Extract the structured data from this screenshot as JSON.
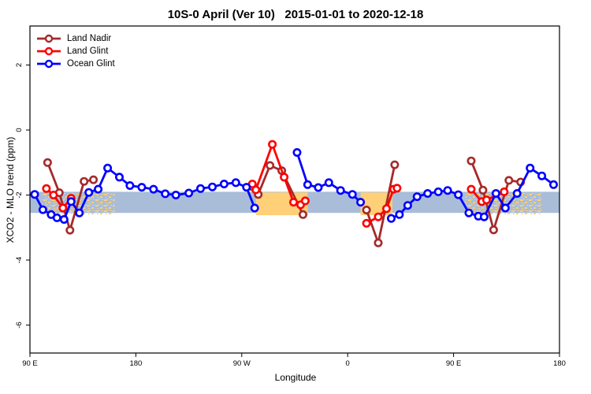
{
  "figure": {
    "title": "10S-0 April (Ver 10)   2015-01-01 to 2020-12-18"
  },
  "chart_data": {
    "type": "line",
    "title": "10S-0 April (Ver 10)   2015-01-01 to 2020-12-18",
    "xlabel": "Longitude",
    "ylabel": "XCO2 - MLO trend (ppm)",
    "grid": "off",
    "legend_position": "top-left",
    "x_axis": {
      "note": "wrapped longitude axis; x = degrees from left edge (left edge = 90 E, axis spans 450 deg eastward)",
      "range": [
        0,
        450
      ],
      "ticks": [
        {
          "pos": 0,
          "label": "90 E"
        },
        {
          "pos": 90,
          "label": "180"
        },
        {
          "pos": 180,
          "label": "90 W"
        },
        {
          "pos": 270,
          "label": "0"
        },
        {
          "pos": 360,
          "label": "90 E"
        },
        {
          "pos": 450,
          "label": "180"
        }
      ]
    },
    "y_axis": {
      "range": [
        -6.86,
        3.2
      ],
      "ticks": [
        {
          "pos": 2,
          "label": "2"
        },
        {
          "pos": 0,
          "label": "0"
        },
        {
          "pos": -2,
          "label": "-2"
        },
        {
          "pos": -4,
          "label": "-4"
        },
        {
          "pos": -6,
          "label": "-6"
        }
      ]
    },
    "reference_band": {
      "y_min": -2.55,
      "y_max": -1.9,
      "color": "#a9bdd9"
    },
    "land_bands": {
      "color": "#ffd077",
      "y_min": -2.62,
      "y_max": -1.92,
      "segments": [
        {
          "x_min": 10,
          "x_max": 72,
          "style": "speckled"
        },
        {
          "x_min": 192,
          "x_max": 236,
          "style": "solid"
        },
        {
          "x_min": 281,
          "x_max": 308,
          "style": "solid"
        },
        {
          "x_min": 370,
          "x_max": 435,
          "style": "speckled"
        }
      ]
    },
    "series": [
      {
        "name": "Land Nadir",
        "color": "#a52a2a",
        "marker": "open-circle",
        "segments": [
          [
            [
              15,
              -1.0
            ],
            [
              25,
              -1.93
            ],
            [
              34,
              -3.08
            ],
            [
              46,
              -1.58
            ],
            [
              54,
              -1.53
            ]
          ],
          [
            [
              189,
              -1.74
            ],
            [
              194,
              -1.98
            ],
            [
              204,
              -1.09
            ],
            [
              214,
              -1.25
            ],
            [
              232,
              -2.6
            ]
          ],
          [
            [
              286,
              -2.46
            ],
            [
              296,
              -3.47
            ],
            [
              310,
              -1.07
            ]
          ],
          [
            [
              375,
              -0.95
            ],
            [
              385,
              -1.85
            ],
            [
              394,
              -3.07
            ],
            [
              407,
              -1.55
            ],
            [
              417,
              -1.6
            ]
          ]
        ]
      },
      {
        "name": "Land Glint",
        "color": "#ff0000",
        "marker": "open-circle",
        "segments": [
          [
            [
              14,
              -1.8
            ],
            [
              20,
              -2.0
            ],
            [
              28,
              -2.4
            ],
            [
              35,
              -2.1
            ]
          ],
          [
            [
              189,
              -1.66
            ],
            [
              192,
              -1.84
            ],
            [
              206,
              -0.44
            ],
            [
              216,
              -1.45
            ],
            [
              224,
              -2.22
            ],
            [
              230,
              -2.3
            ],
            [
              234,
              -2.18
            ]
          ],
          [
            [
              286,
              -2.87
            ],
            [
              296,
              -2.67
            ],
            [
              303,
              -2.42
            ],
            [
              309,
              -1.82
            ],
            [
              312,
              -1.79
            ]
          ],
          [
            [
              375,
              -1.82
            ],
            [
              384,
              -2.2
            ],
            [
              388,
              -2.15
            ],
            [
              403,
              -1.9
            ]
          ]
        ]
      },
      {
        "name": "Ocean Glint",
        "color": "#0000ff",
        "marker": "open-circle",
        "segments": [
          [
            [
              4,
              -1.98
            ],
            [
              11,
              -2.45
            ],
            [
              18,
              -2.6
            ],
            [
              23,
              -2.7
            ],
            [
              29,
              -2.75
            ],
            [
              35,
              -2.2
            ],
            [
              42,
              -2.55
            ],
            [
              50,
              -1.92
            ],
            [
              58,
              -1.82
            ],
            [
              66,
              -1.17
            ],
            [
              76,
              -1.45
            ],
            [
              85,
              -1.71
            ],
            [
              95,
              -1.76
            ],
            [
              105,
              -1.82
            ],
            [
              115,
              -1.96
            ],
            [
              124,
              -2.0
            ],
            [
              135,
              -1.94
            ],
            [
              145,
              -1.8
            ],
            [
              155,
              -1.75
            ],
            [
              165,
              -1.66
            ],
            [
              175,
              -1.62
            ],
            [
              184,
              -1.76
            ],
            [
              191,
              -2.4
            ]
          ],
          [
            [
              227,
              -0.69
            ],
            [
              236,
              -1.68
            ],
            [
              245,
              -1.77
            ],
            [
              254,
              -1.62
            ],
            [
              264,
              -1.86
            ],
            [
              274,
              -1.98
            ],
            [
              281,
              -2.22
            ]
          ],
          [
            [
              307,
              -2.72
            ],
            [
              314,
              -2.6
            ],
            [
              321,
              -2.32
            ],
            [
              329,
              -2.05
            ],
            [
              338,
              -1.95
            ],
            [
              347,
              -1.9
            ],
            [
              355,
              -1.86
            ],
            [
              364,
              -1.99
            ],
            [
              373,
              -2.55
            ],
            [
              381,
              -2.65
            ],
            [
              386,
              -2.67
            ],
            [
              396,
              -1.95
            ],
            [
              404,
              -2.4
            ],
            [
              414,
              -1.95
            ],
            [
              425,
              -1.17
            ],
            [
              435,
              -1.41
            ],
            [
              445,
              -1.68
            ]
          ]
        ]
      }
    ]
  }
}
